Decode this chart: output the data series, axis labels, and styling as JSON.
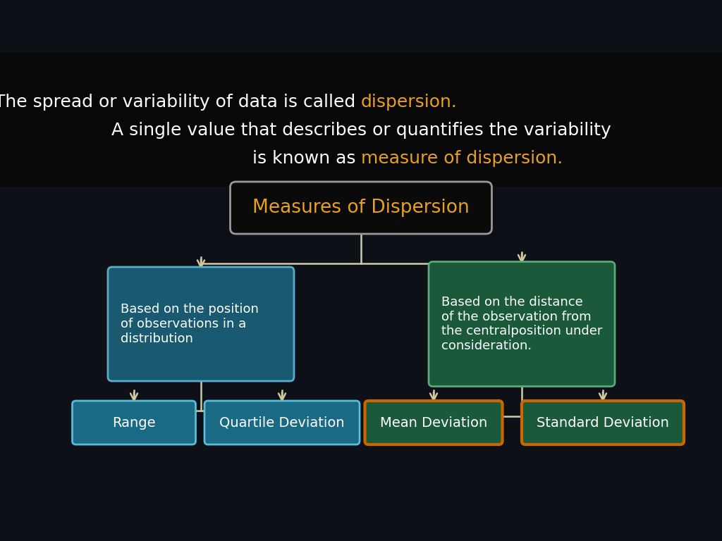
{
  "bg_color": "#0d1117",
  "text_band_color": "#080808",
  "title_text": "Measures of Dispersion",
  "title_color": "#e8a020",
  "title_box_facecolor": "#0a0a0a",
  "title_box_edgecolor": "#999999",
  "subtitle_line1_normal": "The spread or variability of data is called ",
  "subtitle_line1_highlight": "dispersion.",
  "subtitle_line2_normal1": "A single value that describes or quantifies the variability",
  "subtitle_line2_normal2": "is known as ",
  "subtitle_line2_highlight": "measure of dispersion.",
  "subtitle_color_normal": "#ffffff",
  "subtitle_color_highlight": "#e8a020",
  "left_box_text": "Based on the position\nof observations in a\ndistribution",
  "left_box_bg": "#1a5a70",
  "left_box_edge": "#5aadcc",
  "right_box_text": "Based on the distance\nof the observation from\nthe centralposition under\nconsideration.",
  "right_box_bg": "#1a5a3a",
  "right_box_edge": "#5aaa7a",
  "box_text_color": "#ffffff",
  "leaf_range_text": "Range",
  "leaf_range_bg": "#1a6a85",
  "leaf_range_edge": "#5abbd8",
  "leaf_qd_text": "Quartile Deviation",
  "leaf_qd_bg": "#1a6a85",
  "leaf_qd_edge": "#5abbd8",
  "leaf_md_text": "Mean Deviation",
  "leaf_md_bg": "#1a5a3a",
  "leaf_md_edge": "#cc6600",
  "leaf_sd_text": "Standard Deviation",
  "leaf_sd_bg": "#1a5a3a",
  "leaf_sd_edge": "#cc6600",
  "arrow_color": "#d4c89a",
  "line_color": "#ccccaa",
  "subtitle_fontsize": 18,
  "title_fontsize": 18,
  "midbox_fontsize": 13,
  "leaf_fontsize": 14
}
